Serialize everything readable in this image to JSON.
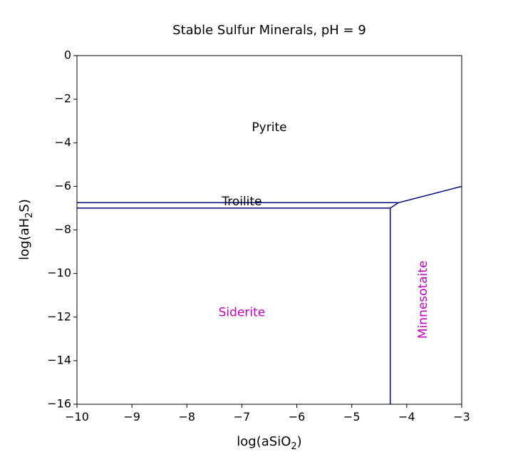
{
  "chart_data": {
    "type": "line",
    "title": "Stable Sulfur Minerals, pH = 9",
    "xlabel": {
      "base": "log(aSiO",
      "sub": "2",
      "tail": ")"
    },
    "ylabel": {
      "base": "log(aH",
      "sub": "2",
      "tail": "S)"
    },
    "xlim": [
      -10,
      -3
    ],
    "ylim": [
      -16,
      0
    ],
    "xticks": [
      -10,
      -9,
      -8,
      -7,
      -6,
      -5,
      -4,
      -3
    ],
    "yticks": [
      0,
      -2,
      -4,
      -6,
      -8,
      -10,
      -12,
      -14,
      -16
    ],
    "xtick_labels": [
      "−10",
      "−9",
      "−8",
      "−7",
      "−6",
      "−5",
      "−4",
      "−3"
    ],
    "ytick_labels": [
      "0",
      "−2",
      "−4",
      "−6",
      "−8",
      "−10",
      "−12",
      "−14",
      "−16"
    ],
    "grid": false,
    "line_color": "#000080",
    "series": [
      {
        "x": [
          -10,
          -4.15
        ],
        "y": [
          -6.75,
          -6.75
        ]
      },
      {
        "x": [
          -10,
          -4.3
        ],
        "y": [
          -7.0,
          -7.0
        ]
      },
      {
        "x": [
          -4.3,
          -4.3
        ],
        "y": [
          -7.0,
          -16
        ]
      },
      {
        "x": [
          -4.3,
          -4.15,
          -3
        ],
        "y": [
          -7.0,
          -6.75,
          -6.0
        ]
      }
    ],
    "region_labels": [
      {
        "text": "Pyrite",
        "x": -6.5,
        "y": -3.3,
        "color": "#000000",
        "rotate": 0
      },
      {
        "text": "Troilite",
        "x": -7.0,
        "y": -6.7,
        "color": "#000000",
        "rotate": 0
      },
      {
        "text": "Siderite",
        "x": -7.0,
        "y": -11.8,
        "color": "#bf00bf",
        "rotate": 0
      },
      {
        "text": "Minnesotaite",
        "x": -3.7,
        "y": -11.2,
        "color": "#bf00bf",
        "rotate": -90
      }
    ]
  }
}
